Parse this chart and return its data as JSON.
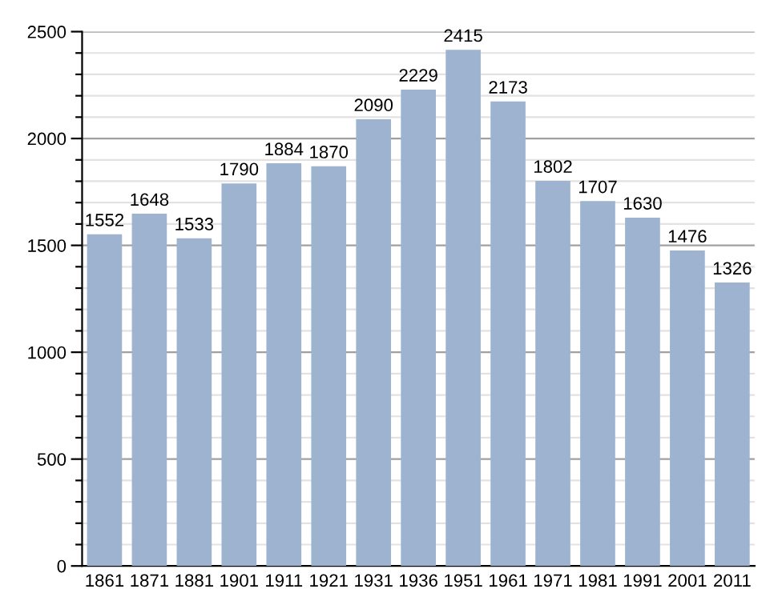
{
  "chart_data": {
    "type": "bar",
    "categories": [
      "1861",
      "1871",
      "1881",
      "1901",
      "1911",
      "1921",
      "1931",
      "1936",
      "1951",
      "1961",
      "1971",
      "1981",
      "1991",
      "2001",
      "2011"
    ],
    "values": [
      1552,
      1648,
      1533,
      1790,
      1884,
      1870,
      2090,
      2229,
      2415,
      2173,
      1802,
      1707,
      1630,
      1476,
      1326
    ],
    "color": "#9db3cf",
    "data_labels": true,
    "ylim": [
      0,
      2500
    ],
    "yticks": [
      0,
      {
        "value": 100,
        "label": null
      },
      {
        "value": 200,
        "label": null
      },
      {
        "value": 300,
        "label": null
      },
      {
        "value": 400,
        "label": null
      },
      500,
      {
        "value": 600,
        "label": null
      },
      {
        "value": 700,
        "label": null
      },
      {
        "value": 800,
        "label": null
      },
      {
        "value": 900,
        "label": null
      },
      1000,
      {
        "value": 1100,
        "label": null
      },
      {
        "value": 1200,
        "label": null
      },
      {
        "value": 1300,
        "label": null
      },
      {
        "value": 1400,
        "label": null
      },
      1500,
      {
        "value": 1600,
        "label": null
      },
      {
        "value": 1700,
        "label": null
      },
      {
        "value": 1800,
        "label": null
      },
      {
        "value": 1900,
        "label": null
      },
      2000,
      {
        "value": 2100,
        "label": null
      },
      {
        "value": 2200,
        "label": null
      },
      {
        "value": 2300,
        "label": null
      },
      {
        "value": 2400,
        "label": null
      },
      2500
    ],
    "grid": "y"
  }
}
